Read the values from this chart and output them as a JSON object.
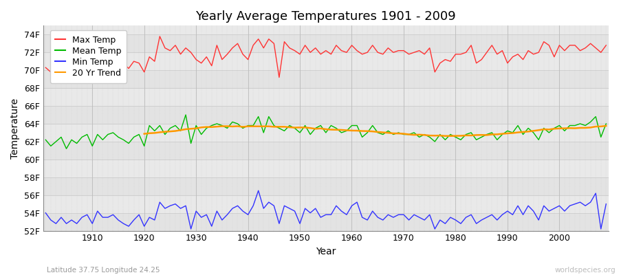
{
  "title": "Yearly Average Temperatures 1901 - 2009",
  "xlabel": "Year",
  "ylabel": "Temperature",
  "subtitle_lat": "Latitude 37.75 Longitude 24.25",
  "watermark": "worldspecies.org",
  "years": [
    1901,
    1902,
    1903,
    1904,
    1905,
    1906,
    1907,
    1908,
    1909,
    1910,
    1911,
    1912,
    1913,
    1914,
    1915,
    1916,
    1917,
    1918,
    1919,
    1920,
    1921,
    1922,
    1923,
    1924,
    1925,
    1926,
    1927,
    1928,
    1929,
    1930,
    1931,
    1932,
    1933,
    1934,
    1935,
    1936,
    1937,
    1938,
    1939,
    1940,
    1941,
    1942,
    1943,
    1944,
    1945,
    1946,
    1947,
    1948,
    1949,
    1950,
    1951,
    1952,
    1953,
    1954,
    1955,
    1956,
    1957,
    1958,
    1959,
    1960,
    1961,
    1962,
    1963,
    1964,
    1965,
    1966,
    1967,
    1968,
    1969,
    1970,
    1971,
    1972,
    1973,
    1974,
    1975,
    1976,
    1977,
    1978,
    1979,
    1980,
    1981,
    1982,
    1983,
    1984,
    1985,
    1986,
    1987,
    1988,
    1989,
    1990,
    1991,
    1992,
    1993,
    1994,
    1995,
    1996,
    1997,
    1998,
    1999,
    2000,
    2001,
    2002,
    2003,
    2004,
    2005,
    2006,
    2007,
    2008,
    2009
  ],
  "max_temp": [
    70.3,
    69.8,
    69.5,
    70.8,
    69.2,
    70.5,
    69.8,
    70.1,
    71.0,
    70.5,
    71.2,
    70.8,
    71.5,
    72.0,
    71.2,
    70.8,
    70.2,
    71.0,
    70.8,
    69.8,
    71.5,
    71.0,
    73.8,
    72.5,
    72.2,
    72.8,
    71.8,
    72.5,
    72.0,
    71.2,
    70.8,
    71.5,
    70.5,
    72.8,
    71.2,
    71.8,
    72.5,
    73.0,
    71.8,
    71.2,
    72.8,
    73.5,
    72.5,
    73.5,
    73.0,
    69.2,
    73.2,
    72.5,
    72.2,
    71.8,
    72.8,
    72.0,
    72.5,
    71.8,
    72.2,
    71.8,
    72.8,
    72.2,
    72.0,
    72.8,
    72.2,
    71.8,
    72.0,
    72.8,
    72.0,
    71.8,
    72.5,
    72.0,
    72.2,
    72.2,
    71.8,
    72.0,
    72.2,
    71.8,
    72.5,
    69.8,
    70.8,
    71.2,
    71.0,
    71.8,
    71.8,
    72.0,
    72.8,
    70.8,
    71.2,
    72.0,
    72.8,
    71.8,
    72.2,
    70.8,
    71.5,
    71.8,
    71.2,
    72.2,
    71.8,
    72.0,
    73.2,
    72.8,
    71.5,
    72.8,
    72.2,
    72.8,
    72.8,
    72.2,
    72.5,
    73.0,
    72.5,
    72.0,
    72.8
  ],
  "mean_temp": [
    62.2,
    61.5,
    62.0,
    62.5,
    61.2,
    62.2,
    61.8,
    62.5,
    62.8,
    61.5,
    62.8,
    62.2,
    62.8,
    63.0,
    62.5,
    62.2,
    61.8,
    62.5,
    62.8,
    61.5,
    63.8,
    63.2,
    63.8,
    62.8,
    63.5,
    63.8,
    63.2,
    65.0,
    61.8,
    63.8,
    62.8,
    63.5,
    63.8,
    64.0,
    63.8,
    63.5,
    64.2,
    64.0,
    63.5,
    63.8,
    63.8,
    64.8,
    63.0,
    64.8,
    63.8,
    63.5,
    63.2,
    63.8,
    63.5,
    63.0,
    63.8,
    62.8,
    63.5,
    63.8,
    63.0,
    63.8,
    63.5,
    63.0,
    63.2,
    63.8,
    63.8,
    62.5,
    63.0,
    63.8,
    63.0,
    62.8,
    63.2,
    62.8,
    63.0,
    62.8,
    62.8,
    63.0,
    62.5,
    62.8,
    62.5,
    62.0,
    62.8,
    62.2,
    62.8,
    62.5,
    62.2,
    62.8,
    63.0,
    62.2,
    62.5,
    62.8,
    63.0,
    62.2,
    62.8,
    63.2,
    63.0,
    63.8,
    62.8,
    63.5,
    63.0,
    62.2,
    63.5,
    63.0,
    63.5,
    63.8,
    63.2,
    63.8,
    63.8,
    64.0,
    63.8,
    64.2,
    64.8,
    62.5,
    64.0
  ],
  "min_temp": [
    54.0,
    53.2,
    52.8,
    53.5,
    52.8,
    53.2,
    52.8,
    53.5,
    53.8,
    52.8,
    54.2,
    53.5,
    53.5,
    53.8,
    53.2,
    52.8,
    52.5,
    53.2,
    53.8,
    52.5,
    53.5,
    53.2,
    55.2,
    54.5,
    54.8,
    55.0,
    54.5,
    54.8,
    52.2,
    54.2,
    53.5,
    53.8,
    52.5,
    54.2,
    53.2,
    53.8,
    54.5,
    54.8,
    54.2,
    53.8,
    54.8,
    56.5,
    54.5,
    55.2,
    54.8,
    52.8,
    54.8,
    54.5,
    54.2,
    52.8,
    54.5,
    54.0,
    54.5,
    53.5,
    53.8,
    53.8,
    54.8,
    54.2,
    53.8,
    54.8,
    55.2,
    53.5,
    53.2,
    54.2,
    53.5,
    53.2,
    53.8,
    53.5,
    53.8,
    53.8,
    53.2,
    53.8,
    53.5,
    53.2,
    53.8,
    52.2,
    53.2,
    52.8,
    53.5,
    53.2,
    52.8,
    53.5,
    53.8,
    52.8,
    53.2,
    53.5,
    53.8,
    53.2,
    53.8,
    54.2,
    53.8,
    54.8,
    53.8,
    54.8,
    54.2,
    53.2,
    54.8,
    54.2,
    54.5,
    54.8,
    54.2,
    54.8,
    55.0,
    55.2,
    54.8,
    55.2,
    56.2,
    52.2,
    55.0
  ],
  "trend_start_year": 1920,
  "ylim_min": 52,
  "ylim_max": 75,
  "yticks": [
    52,
    54,
    56,
    58,
    60,
    62,
    64,
    66,
    68,
    70,
    72,
    74
  ],
  "ytick_labels": [
    "52F",
    "54F",
    "56F",
    "58F",
    "60F",
    "62F",
    "64F",
    "66F",
    "68F",
    "70F",
    "72F",
    "74F"
  ],
  "xticks": [
    1910,
    1920,
    1930,
    1940,
    1950,
    1960,
    1970,
    1980,
    1990,
    2000
  ],
  "bg_color": "#ffffff",
  "plot_bg_color": "#e8e8e8",
  "max_color": "#ff3333",
  "mean_color": "#00bb00",
  "min_color": "#3333ff",
  "trend_color": "#ff9900",
  "grid_major_color": "#cccccc",
  "grid_minor_color": "#dddddd",
  "title_fontsize": 13,
  "legend_fontsize": 9,
  "axis_label_fontsize": 10,
  "tick_fontsize": 9
}
